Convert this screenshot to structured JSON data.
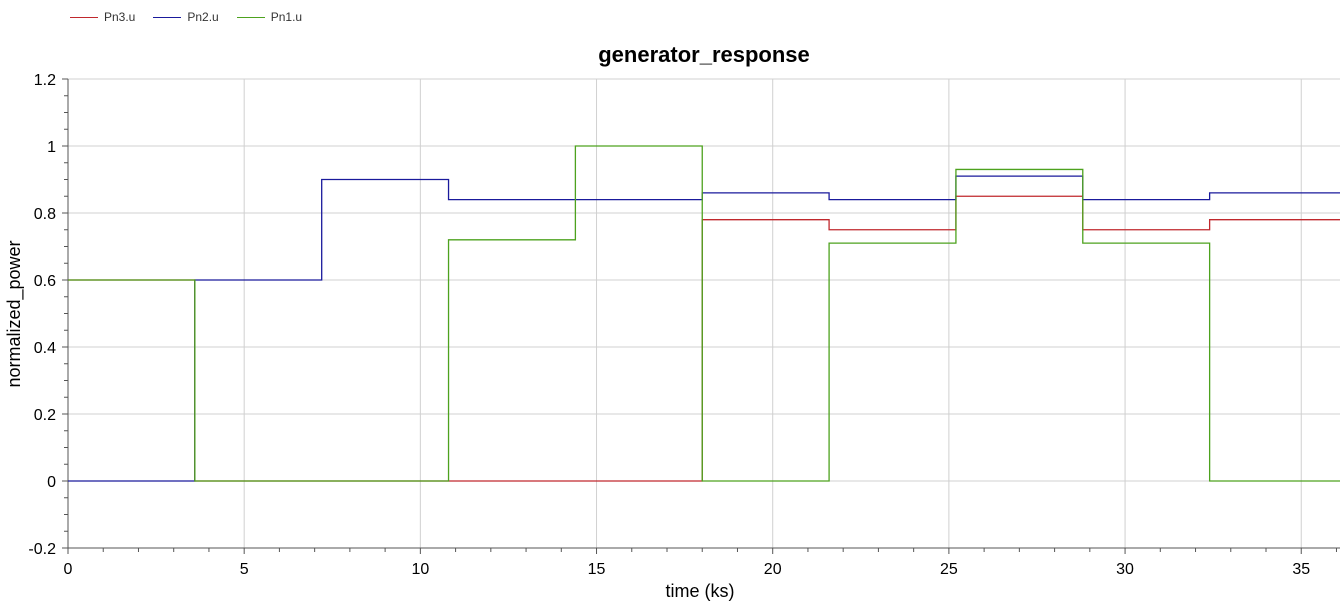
{
  "chart_data": {
    "type": "line",
    "title": "generator_response",
    "xlabel": "time (ks)",
    "ylabel": "normalized_power",
    "xlim": [
      0,
      36.1
    ],
    "ylim": [
      -0.2,
      1.2
    ],
    "xticks": [
      0,
      5,
      10,
      15,
      20,
      25,
      30,
      35
    ],
    "yticks": [
      -0.2,
      0,
      0.2,
      0.4,
      0.6,
      0.8,
      1,
      1.2
    ],
    "ytick_labels": [
      "-0.2",
      "0",
      "0.2",
      "0.4",
      "0.6",
      "0.8",
      "1",
      "1.2"
    ],
    "grid": true,
    "legend_position": "top-left",
    "series": [
      {
        "name": "Pn3.u",
        "color": "#c0282d",
        "x": [
          0,
          3.6,
          3.6,
          7.2,
          7.2,
          10.8,
          10.8,
          14.4,
          14.4,
          18.0,
          18.0,
          21.6,
          21.6,
          25.2,
          25.2,
          28.8,
          28.8,
          32.4,
          32.4,
          36.1
        ],
        "y": [
          0.6,
          0.6,
          0,
          0,
          0,
          0,
          0,
          0,
          0,
          0,
          0.78,
          0.78,
          0.75,
          0.75,
          0.85,
          0.85,
          0.75,
          0.75,
          0.78,
          0.78
        ]
      },
      {
        "name": "Pn2.u",
        "color": "#1a1a9c",
        "x": [
          0,
          3.6,
          3.6,
          7.2,
          7.2,
          10.8,
          10.8,
          14.4,
          14.4,
          18.0,
          18.0,
          21.6,
          21.6,
          25.2,
          25.2,
          28.8,
          28.8,
          32.4,
          32.4,
          36.1
        ],
        "y": [
          0,
          0,
          0.6,
          0.6,
          0.9,
          0.9,
          0.84,
          0.84,
          0.84,
          0.84,
          0.86,
          0.86,
          0.84,
          0.84,
          0.91,
          0.91,
          0.84,
          0.84,
          0.86,
          0.86
        ]
      },
      {
        "name": "Pn1.u",
        "color": "#4da21e",
        "x": [
          0,
          3.6,
          3.6,
          7.2,
          7.2,
          10.8,
          10.8,
          14.4,
          14.4,
          18.0,
          18.0,
          21.6,
          21.6,
          25.2,
          25.2,
          28.8,
          28.8,
          32.4,
          32.4,
          36.1
        ],
        "y": [
          0.6,
          0.6,
          0,
          0,
          0,
          0,
          0.72,
          0.72,
          1.0,
          1.0,
          0,
          0,
          0.71,
          0.71,
          0.93,
          0.93,
          0.71,
          0.71,
          0,
          0
        ]
      }
    ]
  }
}
